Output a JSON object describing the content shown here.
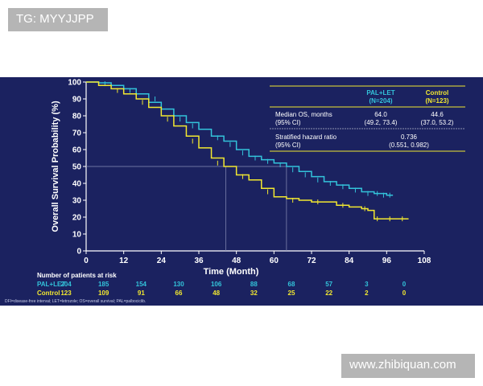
{
  "watermarks": {
    "top": "TG: MYYJJPP",
    "bottom": "www.zhibiquan.com"
  },
  "footnote": "DFI=disease-free interval; LET=letrozole; OS=overall survival; PAL=palbociclib.",
  "colors": {
    "background": "#1b2260",
    "pal_let": "#33c3da",
    "control": "#f2e830",
    "header": "#f2e830",
    "axis": "#ffffff"
  },
  "stats_table": {
    "col_pal": "PAL+LET",
    "col_pal_n": "(N=204)",
    "col_ctrl": "Control",
    "col_ctrl_n": "(N=123)",
    "rows": [
      {
        "label": "Median OS, months",
        "sublabel": "(95% CI)",
        "pal": "64.0",
        "pal_ci": "(49.2, 73.4)",
        "ctrl": "44.6",
        "ctrl_ci": "(37.0, 53.2)"
      },
      {
        "label": "Stratified hazard ratio",
        "sublabel": "(95% CI)",
        "merged": "0.736",
        "merged_ci": "(0.551, 0.982)"
      }
    ]
  },
  "risk_table": {
    "title": "Number of patients at risk",
    "rows": [
      {
        "label": "PAL+LET",
        "values": [
          "204",
          "185",
          "154",
          "130",
          "106",
          "88",
          "68",
          "57",
          "3",
          "0"
        ]
      },
      {
        "label": "Control",
        "values": [
          "123",
          "109",
          "91",
          "66",
          "48",
          "32",
          "25",
          "22",
          "2",
          "0"
        ]
      }
    ]
  },
  "chart_data": {
    "type": "line",
    "title": "",
    "xlabel": "Time (Month)",
    "ylabel": "Overall Survival Probability (%)",
    "xlim": [
      0,
      108
    ],
    "ylim": [
      0,
      100
    ],
    "xticks": [
      0,
      12,
      24,
      36,
      48,
      60,
      72,
      84,
      96,
      108
    ],
    "yticks": [
      0,
      10,
      20,
      30,
      40,
      50,
      60,
      70,
      80,
      90,
      100
    ],
    "grid": false,
    "median_line": {
      "y": 50,
      "x_values": [
        44.6,
        64.0
      ]
    },
    "series": [
      {
        "name": "PAL+LET",
        "color": "#33c3da",
        "points": [
          [
            0,
            100
          ],
          [
            4,
            99.5
          ],
          [
            8,
            98
          ],
          [
            12,
            96
          ],
          [
            16,
            93
          ],
          [
            20,
            88
          ],
          [
            24,
            84
          ],
          [
            28,
            80
          ],
          [
            32,
            76
          ],
          [
            36,
            72
          ],
          [
            40,
            68
          ],
          [
            44,
            65
          ],
          [
            48,
            60
          ],
          [
            52,
            56
          ],
          [
            56,
            54
          ],
          [
            60,
            52
          ],
          [
            64,
            50
          ],
          [
            68,
            47
          ],
          [
            72,
            44
          ],
          [
            76,
            41
          ],
          [
            80,
            39
          ],
          [
            84,
            37
          ],
          [
            88,
            35
          ],
          [
            92,
            34
          ],
          [
            96,
            33
          ],
          [
            98,
            33
          ]
        ],
        "censors": [
          [
            6,
            99
          ],
          [
            14,
            95
          ],
          [
            22,
            90
          ],
          [
            30,
            78
          ],
          [
            34,
            74
          ],
          [
            42,
            67
          ],
          [
            46,
            63
          ],
          [
            50,
            58
          ],
          [
            54,
            55
          ],
          [
            58,
            53
          ],
          [
            62,
            51
          ],
          [
            66,
            48
          ],
          [
            70,
            45
          ],
          [
            74,
            42
          ],
          [
            78,
            40
          ],
          [
            82,
            38
          ],
          [
            86,
            36
          ],
          [
            90,
            34
          ],
          [
            93,
            34
          ],
          [
            95,
            33
          ],
          [
            97,
            33
          ]
        ]
      },
      {
        "name": "Control",
        "color": "#f2e830",
        "points": [
          [
            0,
            100
          ],
          [
            4,
            98
          ],
          [
            8,
            96
          ],
          [
            12,
            93
          ],
          [
            16,
            90
          ],
          [
            20,
            85
          ],
          [
            24,
            80
          ],
          [
            28,
            74
          ],
          [
            32,
            68
          ],
          [
            36,
            61
          ],
          [
            40,
            55
          ],
          [
            44,
            50
          ],
          [
            48,
            45
          ],
          [
            52,
            42
          ],
          [
            56,
            37
          ],
          [
            60,
            32
          ],
          [
            64,
            31
          ],
          [
            68,
            30
          ],
          [
            72,
            29
          ],
          [
            76,
            29
          ],
          [
            80,
            27
          ],
          [
            84,
            26
          ],
          [
            88,
            25
          ],
          [
            90,
            24
          ],
          [
            92,
            19
          ],
          [
            96,
            19
          ],
          [
            100,
            19
          ],
          [
            103,
            19
          ]
        ],
        "censors": [
          [
            10,
            95
          ],
          [
            18,
            88
          ],
          [
            26,
            78
          ],
          [
            34,
            65
          ],
          [
            42,
            52
          ],
          [
            50,
            44
          ],
          [
            58,
            35
          ],
          [
            66,
            30
          ],
          [
            74,
            29
          ],
          [
            82,
            27
          ],
          [
            89,
            25
          ],
          [
            93,
            19
          ],
          [
            97,
            19
          ],
          [
            101,
            19
          ]
        ]
      }
    ]
  }
}
